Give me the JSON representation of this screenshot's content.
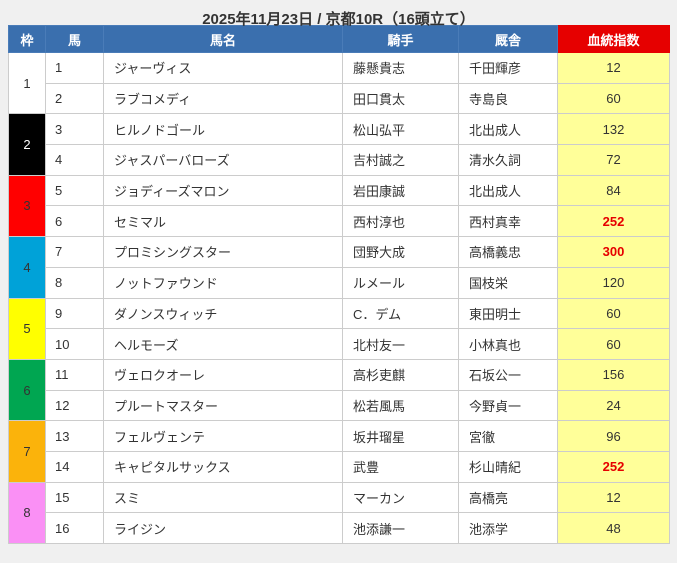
{
  "title": "2025年11月23日 / 京都10R（16頭立て）",
  "colors": {
    "page_bg": "#f0f0f0",
    "header_bg": "#3a6fae",
    "header_index_bg": "#e60000",
    "index_cell_bg": "#ffff99",
    "index_highlight_color": "#e60000"
  },
  "table": {
    "headers": {
      "frame": "枠",
      "horse_no": "馬",
      "horse_name": "馬名",
      "jockey": "騎手",
      "stable": "厩舎",
      "index": "血統指数"
    },
    "frames": [
      {
        "number": "1",
        "bg": "#ffffff",
        "fg": "#333333"
      },
      {
        "number": "2",
        "bg": "#000000",
        "fg": "#ffffff"
      },
      {
        "number": "3",
        "bg": "#ff0000",
        "fg": "#333333"
      },
      {
        "number": "4",
        "bg": "#00a2d8",
        "fg": "#333333"
      },
      {
        "number": "5",
        "bg": "#ffff00",
        "fg": "#333333"
      },
      {
        "number": "6",
        "bg": "#00a651",
        "fg": "#333333"
      },
      {
        "number": "7",
        "bg": "#fbb30b",
        "fg": "#333333"
      },
      {
        "number": "8",
        "bg": "#fa90f5",
        "fg": "#333333"
      }
    ],
    "rows": [
      {
        "no": "1",
        "name": "ジャーヴィス",
        "jockey": "藤懸貴志",
        "stable": "千田輝彦",
        "index": "12",
        "index_highlight": false
      },
      {
        "no": "2",
        "name": "ラブコメディ",
        "jockey": "田口貫太",
        "stable": "寺島良",
        "index": "60",
        "index_highlight": false
      },
      {
        "no": "3",
        "name": "ヒルノドゴール",
        "jockey": "松山弘平",
        "stable": "北出成人",
        "index": "132",
        "index_highlight": false
      },
      {
        "no": "4",
        "name": "ジャスパーバローズ",
        "jockey": "吉村誠之",
        "stable": "清水久詞",
        "index": "72",
        "index_highlight": false
      },
      {
        "no": "5",
        "name": "ジョディーズマロン",
        "jockey": "岩田康誠",
        "stable": "北出成人",
        "index": "84",
        "index_highlight": false
      },
      {
        "no": "6",
        "name": "セミマル",
        "jockey": "西村淳也",
        "stable": "西村真幸",
        "index": "252",
        "index_highlight": true
      },
      {
        "no": "7",
        "name": "プロミシングスター",
        "jockey": "団野大成",
        "stable": "高橋義忠",
        "index": "300",
        "index_highlight": true
      },
      {
        "no": "8",
        "name": "ノットファウンド",
        "jockey": "ルメール",
        "stable": "国枝栄",
        "index": "120",
        "index_highlight": false
      },
      {
        "no": "9",
        "name": "ダノンスウィッチ",
        "jockey": "C．デム",
        "stable": "東田明士",
        "index": "60",
        "index_highlight": false
      },
      {
        "no": "10",
        "name": "ヘルモーズ",
        "jockey": "北村友一",
        "stable": "小林真也",
        "index": "60",
        "index_highlight": false
      },
      {
        "no": "11",
        "name": "ヴェロクオーレ",
        "jockey": "高杉吏麒",
        "stable": "石坂公一",
        "index": "156",
        "index_highlight": false
      },
      {
        "no": "12",
        "name": "プルートマスター",
        "jockey": "松若風馬",
        "stable": "今野貞一",
        "index": "24",
        "index_highlight": false
      },
      {
        "no": "13",
        "name": "フェルヴェンテ",
        "jockey": "坂井瑠星",
        "stable": "宮徹",
        "index": "96",
        "index_highlight": false
      },
      {
        "no": "14",
        "name": "キャピタルサックス",
        "jockey": "武豊",
        "stable": "杉山晴紀",
        "index": "252",
        "index_highlight": true
      },
      {
        "no": "15",
        "name": "スミ",
        "jockey": "マーカン",
        "stable": "高橋亮",
        "index": "12",
        "index_highlight": false
      },
      {
        "no": "16",
        "name": "ライジン",
        "jockey": "池添謙一",
        "stable": "池添学",
        "index": "48",
        "index_highlight": false
      }
    ]
  }
}
